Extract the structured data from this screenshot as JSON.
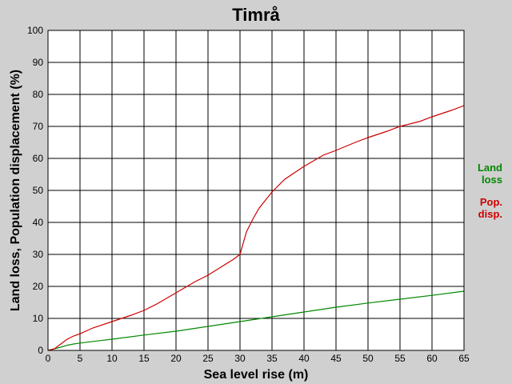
{
  "chart_data": {
    "type": "line",
    "title": "Timrå",
    "xlabel": "Sea level rise (m)",
    "ylabel": "Land loss, Population displacement (%)",
    "xlim": [
      0,
      65
    ],
    "ylim": [
      0,
      100
    ],
    "x_ticks": [
      0,
      5,
      10,
      15,
      20,
      25,
      30,
      35,
      40,
      45,
      50,
      55,
      60,
      65
    ],
    "y_ticks": [
      0,
      10,
      20,
      30,
      40,
      50,
      60,
      70,
      80,
      90,
      100
    ],
    "grid": true,
    "legend_position": "right",
    "series": [
      {
        "name": "Land loss",
        "legend_lines": [
          "Land",
          "loss"
        ],
        "color": "#008800",
        "x": [
          0,
          1,
          2,
          3,
          4,
          5,
          10,
          15,
          20,
          25,
          30,
          35,
          40,
          45,
          50,
          55,
          60,
          65
        ],
        "y": [
          0,
          0.5,
          1,
          1.6,
          2,
          2.3,
          3.5,
          4.8,
          6,
          7.5,
          9,
          10.5,
          12,
          13.5,
          14.8,
          16,
          17.2,
          18.5
        ]
      },
      {
        "name": "Pop. disp.",
        "legend_lines": [
          "Pop.",
          "disp."
        ],
        "color": "#cc0000",
        "x": [
          0,
          1,
          2,
          3,
          4,
          5,
          7,
          10,
          13,
          15,
          17,
          20,
          23,
          25,
          27,
          29,
          30,
          31,
          32,
          33,
          35,
          37,
          40,
          43,
          45,
          48,
          50,
          53,
          55,
          58,
          60,
          63,
          65
        ],
        "y": [
          0,
          0.5,
          2,
          3.5,
          4.5,
          5.2,
          7,
          9,
          11,
          12.5,
          14.5,
          18,
          21.5,
          23.5,
          26,
          28.5,
          30,
          37,
          41,
          44.5,
          49.5,
          53.5,
          57.5,
          61,
          62.5,
          65,
          66.5,
          68.5,
          70,
          71.5,
          73,
          75,
          76.5
        ]
      }
    ]
  }
}
